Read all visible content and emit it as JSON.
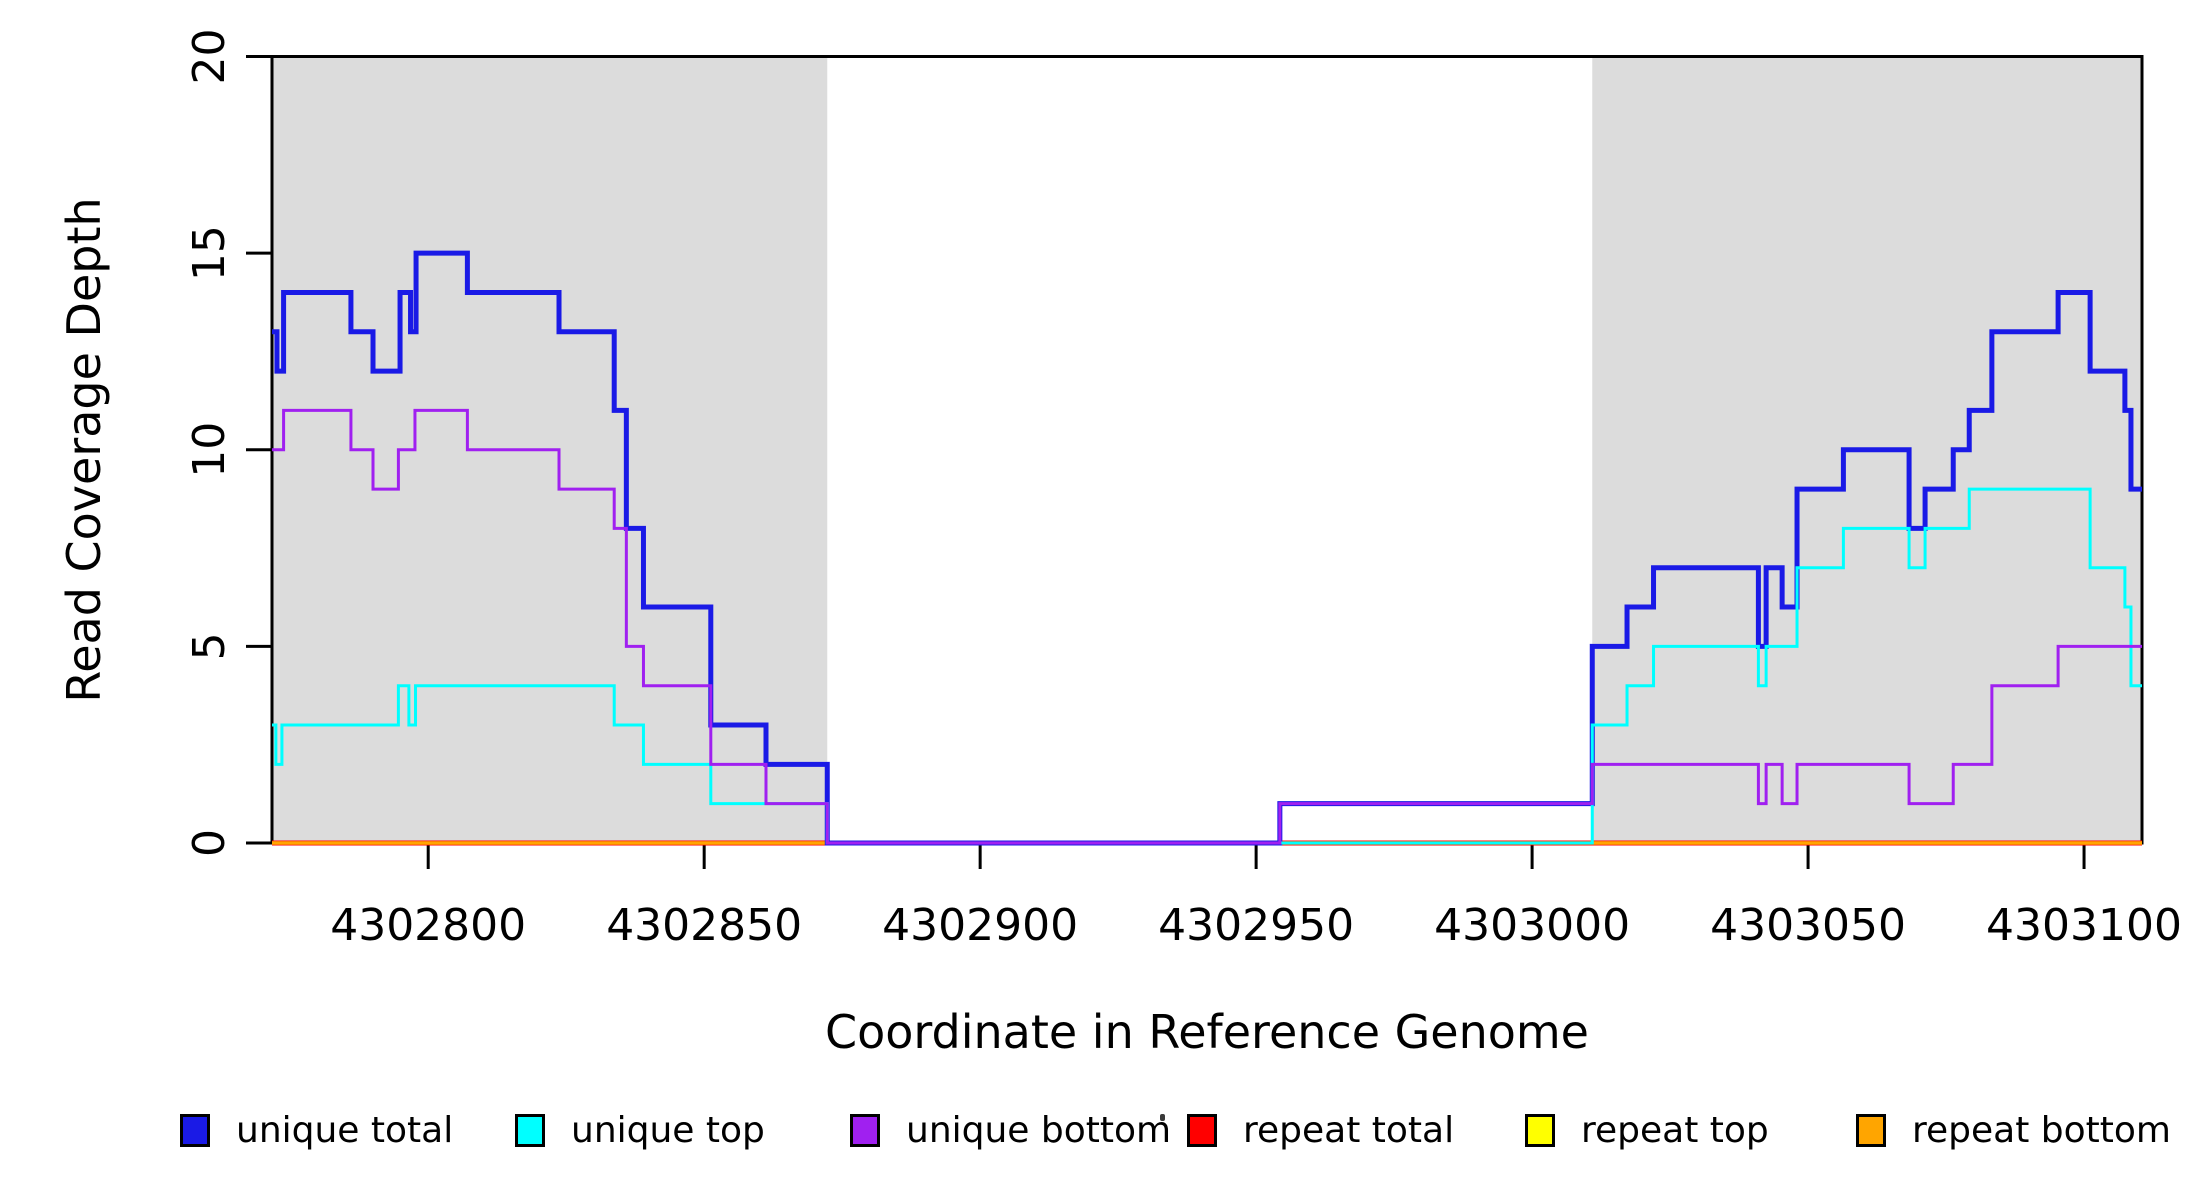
{
  "figure": {
    "background": "#FFFFFF",
    "band_color": "#DCDCDC",
    "axis_color": "#000000",
    "text_color": "#000000"
  },
  "axes": {
    "x_title": "Coordinate in Reference Genome",
    "y_title": "Read Coverage Depth",
    "x_ticks": [
      {
        "value": 4302800,
        "label": "4302800"
      },
      {
        "value": 4302850,
        "label": "4302850"
      },
      {
        "value": 4302900,
        "label": "4302900"
      },
      {
        "value": 4302950,
        "label": "4302950"
      },
      {
        "value": 4303000,
        "label": "4303000"
      },
      {
        "value": 4303050,
        "label": "4303050"
      },
      {
        "value": 4303100,
        "label": "4303100"
      }
    ],
    "y_ticks": [
      {
        "value": 0,
        "label": "0"
      },
      {
        "value": 5,
        "label": "5"
      },
      {
        "value": 10,
        "label": "10"
      },
      {
        "value": 15,
        "label": "15"
      },
      {
        "value": 20,
        "label": "20"
      }
    ]
  },
  "legend": {
    "items": [
      {
        "label": "unique total",
        "color": "#1A1AE6"
      },
      {
        "label": "unique top",
        "color": "#00FFFF"
      },
      {
        "label": "unique bottom",
        "color": "#A020F0"
      },
      {
        "label": "repeat total",
        "color": "#FF0000"
      },
      {
        "label": "repeat top",
        "color": "#FFFF00"
      },
      {
        "label": "repeat bottom",
        "color": "#FFA500"
      }
    ]
  },
  "chart_data": {
    "type": "line",
    "subtype": "step-after",
    "title": "",
    "xlabel": "Coordinate in Reference Genome",
    "ylabel": "Read Coverage Depth",
    "xlim": [
      4302771.7,
      4303110.5
    ],
    "ylim": [
      0,
      20
    ],
    "grid": false,
    "legend_position": "bottom",
    "shaded_regions": [
      {
        "x1": 4302771.7,
        "x2": 4302872.3
      },
      {
        "x1": 4303010.9,
        "x2": 4303110.5
      }
    ],
    "series": [
      {
        "name": "repeat total",
        "color": "#FF0000",
        "line_width": 5,
        "x_end": 4303110.5,
        "points": [
          [
            4302771.7,
            0
          ]
        ]
      },
      {
        "name": "repeat top",
        "color": "#FFFF00",
        "line_width": 3,
        "x_end": 4303110.5,
        "points": [
          [
            4302771.7,
            0
          ]
        ]
      },
      {
        "name": "repeat bottom",
        "color": "#FFA500",
        "line_width": 3.5,
        "x_end": 4303110.5,
        "points": [
          [
            4302771.7,
            0
          ]
        ]
      },
      {
        "name": "unique total",
        "color": "#1A1AE6",
        "line_width": 5,
        "x_end": 4303110.5,
        "points": [
          [
            4302771.7,
            13
          ],
          [
            4302772.6,
            12
          ],
          [
            4302773.8,
            14
          ],
          [
            4302786.0,
            13
          ],
          [
            4302790.0,
            12
          ],
          [
            4302794.9,
            14
          ],
          [
            4302796.8,
            13
          ],
          [
            4302797.8,
            15
          ],
          [
            4302807.1,
            14
          ],
          [
            4302823.7,
            13
          ],
          [
            4302833.7,
            11
          ],
          [
            4302835.9,
            8
          ],
          [
            4302839.0,
            6
          ],
          [
            4302851.2,
            3
          ],
          [
            4302861.2,
            2
          ],
          [
            4302872.3,
            0
          ],
          [
            4302954.3,
            1
          ],
          [
            4303010.9,
            5
          ],
          [
            4303017.2,
            6
          ],
          [
            4303022.0,
            7
          ],
          [
            4303041.0,
            5
          ],
          [
            4303042.4,
            7
          ],
          [
            4303045.3,
            6
          ],
          [
            4303048.0,
            9
          ],
          [
            4303056.4,
            10
          ],
          [
            4303068.3,
            8
          ],
          [
            4303071.2,
            9
          ],
          [
            4303076.3,
            10
          ],
          [
            4303079.2,
            11
          ],
          [
            4303083.3,
            13
          ],
          [
            4303095.3,
            14
          ],
          [
            4303101.1,
            12
          ],
          [
            4303107.4,
            11
          ],
          [
            4303108.5,
            9
          ]
        ]
      },
      {
        "name": "unique top",
        "color": "#00FFFF",
        "line_width": 3,
        "x_end": 4303110.5,
        "points": [
          [
            4302771.7,
            3
          ],
          [
            4302772.4,
            2
          ],
          [
            4302773.5,
            3
          ],
          [
            4302794.6,
            4
          ],
          [
            4302796.5,
            3
          ],
          [
            4302797.7,
            4
          ],
          [
            4302833.7,
            3
          ],
          [
            4302839.0,
            2
          ],
          [
            4302851.2,
            1
          ],
          [
            4302872.3,
            0
          ],
          [
            4303010.9,
            3
          ],
          [
            4303017.2,
            4
          ],
          [
            4303022.0,
            5
          ],
          [
            4303041.0,
            4
          ],
          [
            4303042.4,
            5
          ],
          [
            4303048.0,
            7
          ],
          [
            4303056.4,
            8
          ],
          [
            4303068.3,
            7
          ],
          [
            4303071.2,
            8
          ],
          [
            4303079.2,
            9
          ],
          [
            4303101.1,
            7
          ],
          [
            4303107.4,
            6
          ],
          [
            4303108.5,
            4
          ]
        ]
      },
      {
        "name": "unique bottom",
        "color": "#A020F0",
        "line_width": 3,
        "x_end": 4303110.5,
        "points": [
          [
            4302771.7,
            10
          ],
          [
            4302773.8,
            11
          ],
          [
            4302786.0,
            10
          ],
          [
            4302790.0,
            9
          ],
          [
            4302794.6,
            10
          ],
          [
            4302797.6,
            11
          ],
          [
            4302807.1,
            10
          ],
          [
            4302823.7,
            9
          ],
          [
            4302833.7,
            8
          ],
          [
            4302835.9,
            5
          ],
          [
            4302839.0,
            4
          ],
          [
            4302851.2,
            2
          ],
          [
            4302861.2,
            1
          ],
          [
            4302872.3,
            0
          ],
          [
            4302954.3,
            1
          ],
          [
            4303010.9,
            2
          ],
          [
            4303041.0,
            1
          ],
          [
            4303042.4,
            2
          ],
          [
            4303045.3,
            1
          ],
          [
            4303048.0,
            2
          ],
          [
            4303068.3,
            1
          ],
          [
            4303076.3,
            2
          ],
          [
            4303083.3,
            4
          ],
          [
            4303095.3,
            5
          ]
        ]
      }
    ]
  }
}
